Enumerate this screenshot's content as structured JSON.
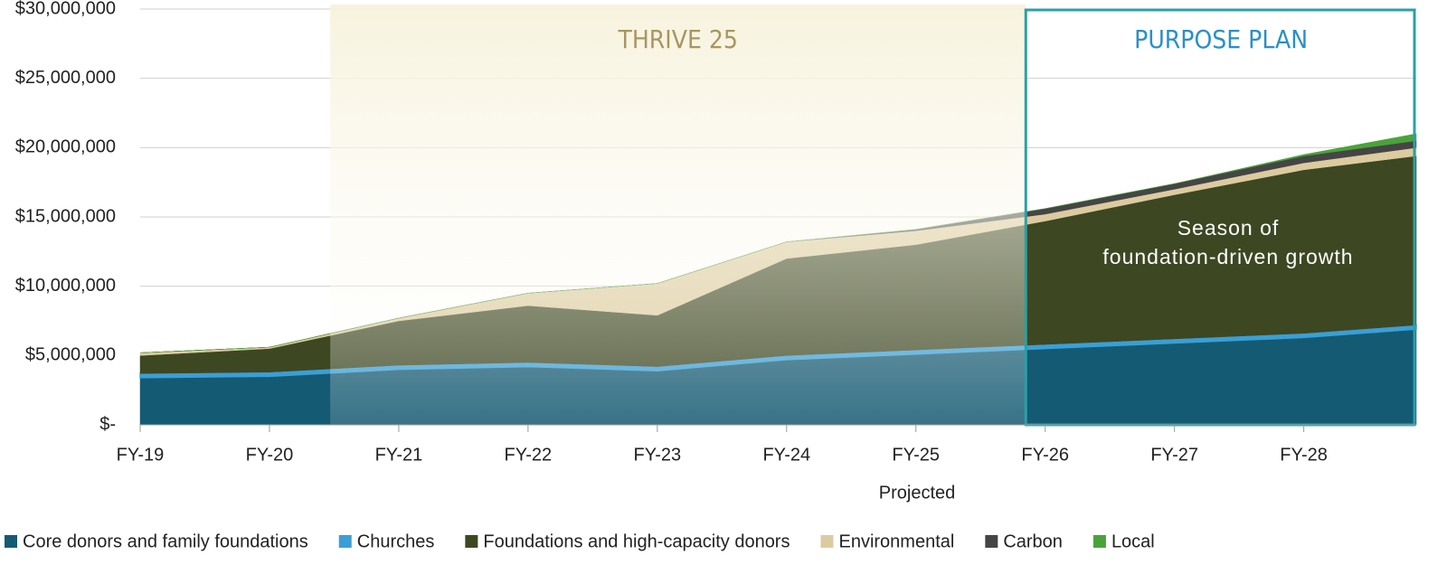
{
  "chart_data": {
    "type": "stacked_area",
    "x": [
      19,
      20,
      21,
      22,
      23,
      24,
      25,
      26,
      27,
      28,
      28.87
    ],
    "xticks": [
      {
        "value": 19,
        "label": "FY-19"
      },
      {
        "value": 20,
        "label": "FY-20"
      },
      {
        "value": 21,
        "label": "FY-21"
      },
      {
        "value": 22,
        "label": "FY-22"
      },
      {
        "value": 23,
        "label": "FY-23"
      },
      {
        "value": 24,
        "label": "FY-24"
      },
      {
        "value": 25,
        "label": "FY-25"
      },
      {
        "value": 26,
        "label": "FY-26"
      },
      {
        "value": 27,
        "label": "FY-27"
      },
      {
        "value": 28,
        "label": "FY-28"
      }
    ],
    "xlim": [
      19,
      28.87
    ],
    "xlabel": "Projected",
    "ylim": [
      0,
      30000000
    ],
    "yticks": [
      {
        "value": 0,
        "label": "$-"
      },
      {
        "value": 5000000,
        "label": "$5,000,000"
      },
      {
        "value": 10000000,
        "label": "$10,000,000"
      },
      {
        "value": 15000000,
        "label": "$15,000,000"
      },
      {
        "value": 20000000,
        "label": "$20,000,000"
      },
      {
        "value": 25000000,
        "label": "$25,000,000"
      },
      {
        "value": 30000000,
        "label": "$30,000,000"
      }
    ],
    "grid": true,
    "series": [
      {
        "name": "Core donors and family foundations",
        "color": "#155a73",
        "values": [
          3400000,
          3500000,
          4000000,
          4200000,
          3900000,
          4700000,
          5100000,
          5500000,
          5900000,
          6300000,
          6900000
        ]
      },
      {
        "name": "Churches",
        "color": "#3a9fd6",
        "values": [
          300000,
          300000,
          300000,
          300000,
          300000,
          300000,
          300000,
          300000,
          300000,
          300000,
          300000
        ]
      },
      {
        "name": "Foundations and high-capacity donors",
        "color": "#3d4722",
        "values": [
          1300000,
          1700000,
          3200000,
          4100000,
          3700000,
          7000000,
          7600000,
          8900000,
          10400000,
          11800000,
          12200000
        ]
      },
      {
        "name": "Environmental",
        "color": "#dccb9f",
        "values": [
          200000,
          100000,
          200000,
          900000,
          2300000,
          1200000,
          1000000,
          500000,
          400000,
          500000,
          600000
        ]
      },
      {
        "name": "Carbon",
        "color": "#454545",
        "values": [
          0,
          0,
          0,
          0,
          0,
          0,
          100000,
          400000,
          400000,
          500000,
          500000
        ]
      },
      {
        "name": "Local",
        "color": "#4aa33a",
        "values": [
          0,
          0,
          0,
          0,
          0,
          0,
          0,
          0,
          0,
          100000,
          500000
        ]
      }
    ],
    "annotations": [
      {
        "text": "THRIVE 25",
        "from": 20.47,
        "to": 25.85
      },
      {
        "text": "PURPOSE PLAN",
        "from": 25.85,
        "to": 28.87
      },
      {
        "text": "Season of foundation-driven growth"
      }
    ],
    "legend": "bottom"
  }
}
